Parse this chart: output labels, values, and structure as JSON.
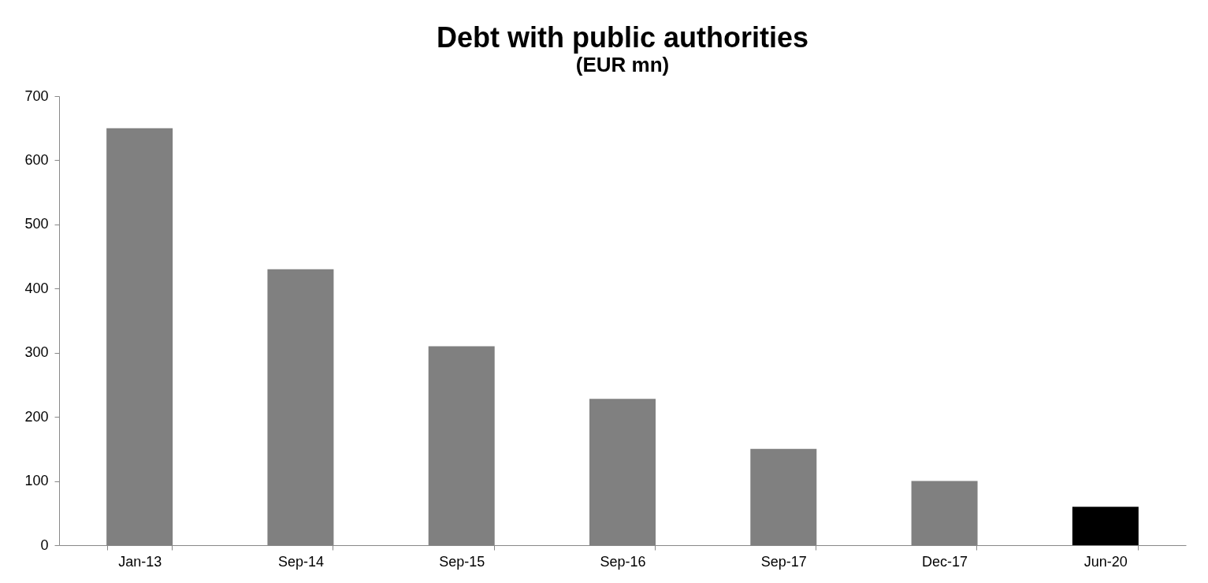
{
  "chart_data": {
    "type": "bar",
    "title": "Debt with public authorities",
    "subtitle": "(EUR mn)",
    "categories": [
      "Jan-13",
      "Sep-14",
      "Sep-15",
      "Sep-16",
      "Sep-17",
      "Dec-17",
      "Jun-20"
    ],
    "values": [
      650,
      430,
      310,
      228,
      150,
      100,
      60
    ],
    "colors": [
      "#808080",
      "#808080",
      "#808080",
      "#808080",
      "#808080",
      "#808080",
      "#000000"
    ],
    "ylim": [
      0,
      700
    ],
    "yticks": [
      0,
      100,
      200,
      300,
      400,
      500,
      600,
      700
    ],
    "grid": false
  }
}
